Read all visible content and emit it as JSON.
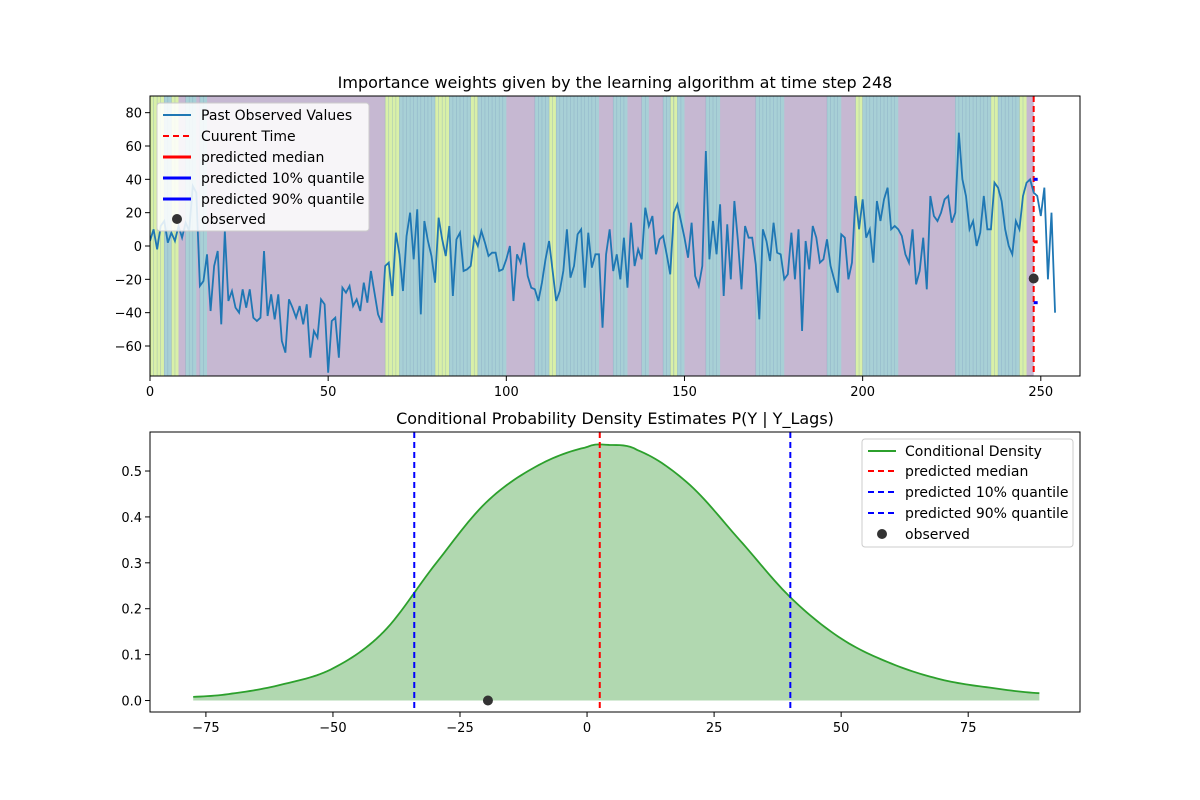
{
  "colors": {
    "series": "#1f77b4",
    "median": "#ff0000",
    "quantile": "#0000ff",
    "observed": "#333333",
    "density_line": "#2ca02c",
    "density_fill": "#b1d8b0",
    "weight_low": "#c6b8d2",
    "weight_mid": "#a8d0d6",
    "weight_high": "#d9f0a8"
  },
  "chart_data": [
    {
      "type": "line",
      "title": "Importance weights given by the learning algorithm at time step 248",
      "xlabel": "",
      "ylabel": "",
      "xlim": [
        0,
        261
      ],
      "ylim": [
        -78,
        90
      ],
      "xticks": [
        0,
        50,
        100,
        150,
        200,
        250
      ],
      "yticks": [
        -60,
        -40,
        -20,
        0,
        20,
        40,
        60,
        80
      ],
      "grid": false,
      "legend_position": "upper-left",
      "legend": [
        "Past Observed Values",
        "Cuurent Time",
        "predicted median",
        "predicted 10% quantile",
        "predicted 90% quantile",
        "observed"
      ],
      "current_time": 248,
      "predicted_median": 2.5,
      "predicted_q10": -34,
      "predicted_q90": 40,
      "observed": -19.5,
      "series": [
        {
          "name": "Past Observed Values",
          "values": [
            3,
            10,
            -2,
            12,
            15,
            2,
            8,
            3,
            12,
            5,
            14,
            9,
            36,
            32,
            -24,
            -21,
            -5,
            -39,
            -12,
            -3,
            -47,
            9,
            -33,
            -27,
            -37,
            -40,
            -26,
            -37,
            -26,
            -43,
            -45,
            -43,
            -3,
            -42,
            -29,
            -44,
            -29,
            -57,
            -64,
            -32,
            -37,
            -43,
            -36,
            -47,
            -35,
            -67,
            -51,
            -55,
            -32,
            -35,
            -76,
            -45,
            -43,
            -67,
            -25,
            -28,
            -24,
            -36,
            -32,
            -39,
            -22,
            -34,
            -15,
            -28,
            -41,
            -46,
            -12,
            -10,
            -30,
            8,
            -5,
            -27,
            6,
            20,
            -8,
            22,
            -41,
            15,
            3,
            -6,
            -22,
            17,
            4,
            -6,
            12,
            -30,
            4,
            8,
            -15,
            -14,
            -12,
            5,
            0,
            9,
            2,
            -6,
            -4,
            -4,
            -15,
            -14,
            -8,
            0,
            -33,
            -5,
            -10,
            2,
            -18,
            -25,
            -26,
            -33,
            -22,
            -8,
            3,
            -15,
            -33,
            -27,
            -15,
            10,
            -19,
            -12,
            7,
            10,
            -25,
            8,
            -13,
            -5,
            -5,
            -49,
            -5,
            10,
            -15,
            -5,
            -20,
            5,
            -25,
            14,
            -12,
            -2,
            -8,
            23,
            12,
            18,
            -5,
            4,
            6,
            -5,
            -17,
            20,
            25,
            15,
            5,
            -7,
            14,
            -18,
            -24,
            -12,
            57,
            -8,
            15,
            -5,
            25,
            -30,
            13,
            -20,
            27,
            3,
            -26,
            12,
            5,
            5,
            -11,
            -44,
            10,
            3,
            -9,
            14,
            -4,
            -5,
            -20,
            -17,
            8,
            -20,
            10,
            -51,
            3,
            -14,
            12,
            5,
            -10,
            -8,
            4,
            -12,
            -20,
            -28,
            7,
            5,
            -20,
            -10,
            30,
            10,
            28,
            5,
            10,
            -10,
            27,
            15,
            28,
            35,
            10,
            12,
            10,
            6,
            -5,
            -10,
            10,
            -23,
            -15,
            5,
            -26,
            30,
            18,
            15,
            20,
            28,
            30,
            14,
            20,
            68,
            40,
            30,
            10,
            15,
            0,
            8,
            30,
            10,
            10,
            38,
            35,
            27,
            10,
            0,
            -5,
            15,
            10,
            30,
            38,
            40,
            32,
            30,
            18,
            35,
            -20,
            20,
            -40
          ]
        }
      ],
      "weight_highlights": [
        {
          "level": "high",
          "x": [
            0,
            4
          ]
        },
        {
          "level": "mid",
          "x": [
            4,
            6
          ]
        },
        {
          "level": "high",
          "x": [
            6,
            8
          ]
        },
        {
          "level": "mid",
          "x": [
            10,
            13
          ]
        },
        {
          "level": "mid",
          "x": [
            14,
            16
          ]
        },
        {
          "level": "high",
          "x": [
            66,
            70
          ]
        },
        {
          "level": "mid",
          "x": [
            70,
            80
          ]
        },
        {
          "level": "high",
          "x": [
            80,
            84
          ]
        },
        {
          "level": "mid",
          "x": [
            84,
            90
          ]
        },
        {
          "level": "high",
          "x": [
            90,
            92
          ]
        },
        {
          "level": "mid",
          "x": [
            92,
            100
          ]
        },
        {
          "level": "mid",
          "x": [
            108,
            112
          ]
        },
        {
          "level": "high",
          "x": [
            112,
            114
          ]
        },
        {
          "level": "mid",
          "x": [
            114,
            126
          ]
        },
        {
          "level": "mid",
          "x": [
            130,
            134
          ]
        },
        {
          "level": "mid",
          "x": [
            138,
            140
          ]
        },
        {
          "level": "mid",
          "x": [
            144,
            150
          ]
        },
        {
          "level": "high",
          "x": [
            146,
            148
          ]
        },
        {
          "level": "mid",
          "x": [
            156,
            160
          ]
        },
        {
          "level": "mid",
          "x": [
            170,
            178
          ]
        },
        {
          "level": "mid",
          "x": [
            190,
            194
          ]
        },
        {
          "level": "high",
          "x": [
            198,
            200
          ]
        },
        {
          "level": "mid",
          "x": [
            200,
            210
          ]
        },
        {
          "level": "mid",
          "x": [
            226,
            236
          ]
        },
        {
          "level": "high",
          "x": [
            236,
            238
          ]
        },
        {
          "level": "mid",
          "x": [
            238,
            244
          ]
        },
        {
          "level": "high",
          "x": [
            244,
            246
          ]
        }
      ]
    },
    {
      "type": "area",
      "title": "Conditional Probability Density Estimates P(Y | Y_Lags)",
      "xlabel": "",
      "ylabel": "",
      "xlim": [
        -86,
        97
      ],
      "ylim": [
        -0.025,
        0.585
      ],
      "xticks": [
        -75,
        -50,
        -25,
        0,
        25,
        50,
        75
      ],
      "yticks": [
        0.0,
        0.1,
        0.2,
        0.3,
        0.4,
        0.5
      ],
      "ytick_labels": [
        "0.0",
        "0.1",
        "0.2",
        "0.3",
        "0.4",
        "0.5"
      ],
      "grid": false,
      "legend_position": "upper-right",
      "legend": [
        "Conditional Density",
        "predicted median",
        "predicted 10% quantile",
        "predicted 90% quantile",
        "observed"
      ],
      "predicted_median": 2.5,
      "predicted_q10": -34,
      "predicted_q90": 40,
      "observed": -19.5,
      "series": [
        {
          "name": "Conditional Density",
          "x": [
            -77.5,
            -70,
            -60,
            -50,
            -40,
            -30,
            -20,
            -10,
            0,
            4,
            10,
            20,
            30,
            40,
            50,
            60,
            70,
            80,
            89
          ],
          "values": [
            0.008,
            0.015,
            0.035,
            0.07,
            0.15,
            0.295,
            0.43,
            0.51,
            0.552,
            0.557,
            0.545,
            0.472,
            0.35,
            0.225,
            0.135,
            0.08,
            0.045,
            0.027,
            0.016
          ]
        }
      ]
    }
  ]
}
